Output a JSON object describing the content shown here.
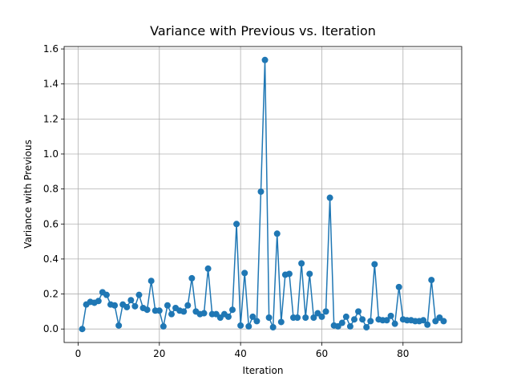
{
  "chart_data": {
    "type": "line",
    "title": "Variance with Previous vs. Iteration",
    "x_label": "Iteration",
    "y_label": "Variance with Previous",
    "x": [
      1,
      2,
      3,
      4,
      5,
      6,
      7,
      8,
      9,
      10,
      11,
      12,
      13,
      14,
      15,
      16,
      17,
      18,
      19,
      20,
      21,
      22,
      23,
      24,
      25,
      26,
      27,
      28,
      29,
      30,
      31,
      32,
      33,
      34,
      35,
      36,
      37,
      38,
      39,
      40,
      41,
      42,
      43,
      44,
      45,
      46,
      47,
      48,
      49,
      50,
      51,
      52,
      53,
      54,
      55,
      56,
      57,
      58,
      59,
      60,
      61,
      62,
      63,
      64,
      65,
      66,
      67,
      68,
      69,
      70,
      71,
      72,
      73,
      74,
      75,
      76,
      77,
      78,
      79,
      80,
      81,
      82,
      83,
      84,
      85,
      86,
      87,
      88,
      89,
      90
    ],
    "series": [
      {
        "color": "#1f77b4",
        "values": [
          0.0,
          0.14,
          0.155,
          0.15,
          0.16,
          0.21,
          0.195,
          0.14,
          0.135,
          0.02,
          0.14,
          0.125,
          0.165,
          0.13,
          0.195,
          0.12,
          0.11,
          0.275,
          0.105,
          0.105,
          0.015,
          0.135,
          0.085,
          0.12,
          0.105,
          0.1,
          0.135,
          0.29,
          0.1,
          0.085,
          0.09,
          0.345,
          0.085,
          0.085,
          0.065,
          0.085,
          0.07,
          0.11,
          0.6,
          0.02,
          0.32,
          0.015,
          0.07,
          0.045,
          0.785,
          1.537,
          0.065,
          0.01,
          0.545,
          0.04,
          0.31,
          0.315,
          0.065,
          0.065,
          0.375,
          0.065,
          0.315,
          0.065,
          0.09,
          0.07,
          0.1,
          0.75,
          0.02,
          0.015,
          0.035,
          0.07,
          0.015,
          0.055,
          0.1,
          0.055,
          0.01,
          0.045,
          0.37,
          0.055,
          0.05,
          0.05,
          0.075,
          0.03,
          0.24,
          0.055,
          0.05,
          0.05,
          0.045,
          0.045,
          0.05,
          0.025,
          0.28,
          0.045,
          0.065,
          0.045
        ]
      }
    ],
    "xlim": [
      -3.45,
      94.45
    ],
    "xticks": [
      0,
      20,
      40,
      60,
      80
    ],
    "ylim": [
      -0.077,
      1.614
    ],
    "yticks": [
      {
        "value": 0,
        "label": "0.0"
      },
      0.2,
      0.4,
      0.6,
      0.8,
      {
        "value": 1,
        "label": "1.0"
      },
      1.2,
      1.4,
      1.6
    ],
    "grid": true
  }
}
